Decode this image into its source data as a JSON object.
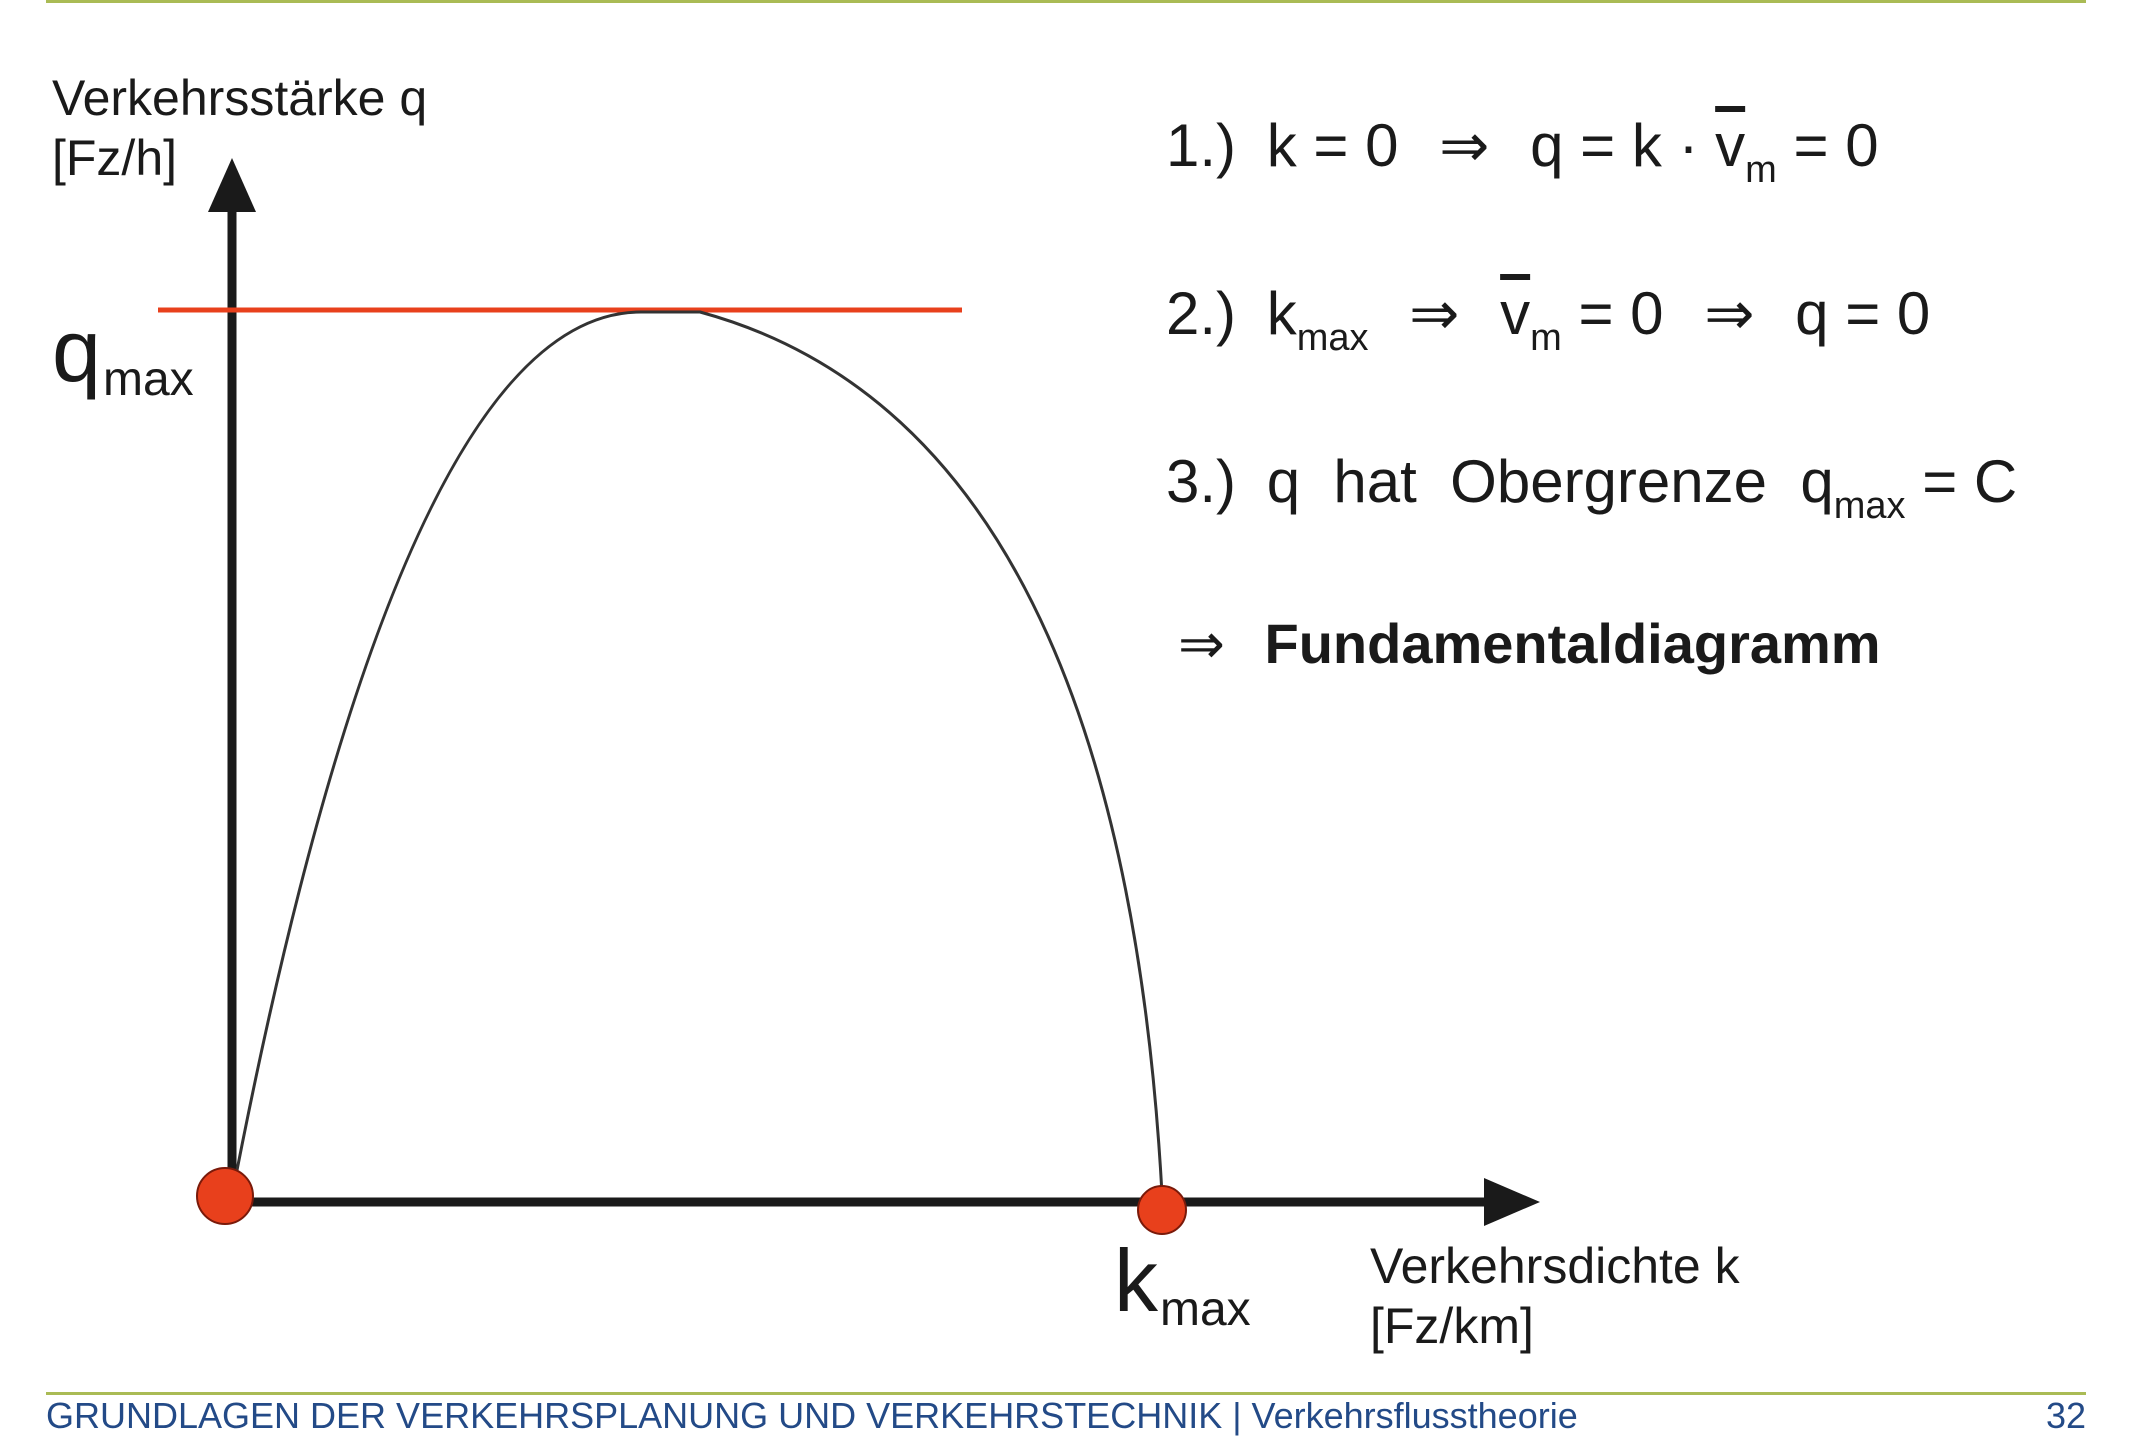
{
  "colors": {
    "rule": "#aabb55",
    "axis": "#1a1a1a",
    "curve": "#333333",
    "capacity_line": "#e8401c",
    "marker": "#e8401c",
    "footer_text": "#234a87"
  },
  "diagram": {
    "y_axis_label_line1": "Verkehrsstärke q",
    "y_axis_label_line2": "[Fz/h]",
    "x_axis_label_line1": "Verkehrsdichte k",
    "x_axis_label_line2": "[Fz/km]",
    "q_symbol": "q",
    "q_subscript": "max",
    "k_symbol": "k",
    "k_subscript": "max"
  },
  "rules": {
    "r1_num": "1.)",
    "r1_a": "k = 0",
    "r1_arrow": "⇒",
    "r1_b": "q = k · ",
    "r1_v": "v",
    "r1_v_sub": "m",
    "r1_c": " = 0",
    "r2_num": "2.)",
    "r2_k": "k",
    "r2_k_sub": "max",
    "r2_arrow1": "⇒",
    "r2_v": "v",
    "r2_v_sub": "m",
    "r2_b": " = 0",
    "r2_arrow2": "⇒",
    "r2_c": "q = 0",
    "r3_num": "3.)",
    "r3_text": "q  hat  Obergrenze  ",
    "r3_q": "q",
    "r3_q_sub": "max",
    "r3_end": " = C",
    "conclusion_arrow": "⇒",
    "conclusion_text": "Fundamentaldiagramm"
  },
  "footer": {
    "title": "GRUNDLAGEN DER VERKEHRSPLANUNG UND VERKEHRSTECHNIK | Verkehrsflusstheorie",
    "page": "32"
  }
}
